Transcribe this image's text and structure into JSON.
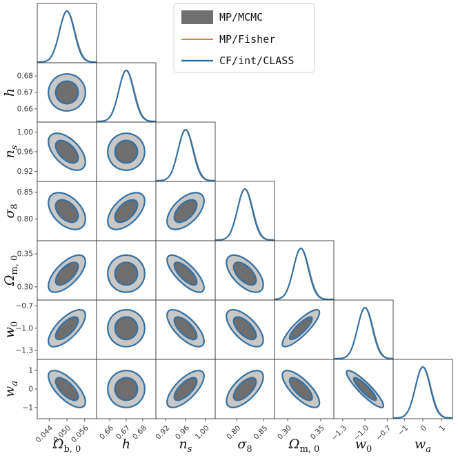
{
  "chart_data": {
    "type": "triangle",
    "parameters": [
      {
        "key": "Omega_b0",
        "min": 0.04,
        "max": 0.06,
        "mean": 0.05,
        "sigma": 0.0025,
        "ticks": [
          "0.044",
          "0.050",
          "0.056"
        ],
        "tick_values": [
          0.044,
          0.05,
          0.056
        ]
      },
      {
        "key": "h",
        "min": 0.652,
        "max": 0.688,
        "mean": 0.67,
        "sigma": 0.0045,
        "ticks": [
          "0.66",
          "0.67",
          "0.68"
        ],
        "tick_values": [
          0.66,
          0.67,
          0.68
        ]
      },
      {
        "key": "n_s",
        "min": 0.9,
        "max": 1.02,
        "mean": 0.96,
        "sigma": 0.015,
        "ticks": [
          "0.92",
          "0.96",
          "1.00"
        ],
        "tick_values": [
          0.92,
          0.96,
          1.0
        ]
      },
      {
        "key": "sigma_8",
        "min": 0.76,
        "max": 0.87,
        "mean": 0.815,
        "sigma": 0.0137,
        "ticks": [
          "0.80",
          "0.85"
        ],
        "tick_values": [
          0.8,
          0.85
        ]
      },
      {
        "key": "Omega_m0",
        "min": 0.28,
        "max": 0.37,
        "mean": 0.32,
        "sigma": 0.0113,
        "ticks": [
          "0.30",
          "0.35"
        ],
        "tick_values": [
          0.3,
          0.35
        ]
      },
      {
        "key": "w_0",
        "min": -1.42,
        "max": -0.62,
        "mean": -1.0,
        "sigma": 0.1,
        "ticks": [
          "-1.3",
          "-1.0",
          "-0.7"
        ],
        "tick_values": [
          -1.3,
          -1.0,
          -0.7
        ]
      },
      {
        "key": "w_a",
        "min": -1.6,
        "max": 1.6,
        "mean": 0.0,
        "sigma": 0.4,
        "ticks": [
          "-1",
          "0",
          "1"
        ],
        "tick_values": [
          -1,
          0,
          1
        ]
      }
    ],
    "correlations": [
      [
        1.0,
        0.0,
        -0.55,
        -0.45,
        0.65,
        0.7,
        -0.7
      ],
      [
        0.0,
        1.0,
        0.0,
        0.55,
        0.0,
        0.0,
        0.0
      ],
      [
        -0.55,
        0.0,
        1.0,
        0.55,
        -0.75,
        -0.7,
        0.7
      ],
      [
        -0.45,
        0.55,
        0.55,
        1.0,
        -0.6,
        -0.65,
        0.65
      ],
      [
        0.65,
        0.0,
        -0.75,
        -0.6,
        1.0,
        0.85,
        -0.75
      ],
      [
        0.7,
        0.0,
        -0.7,
        -0.65,
        0.85,
        1.0,
        -0.9
      ],
      [
        -0.7,
        0.0,
        0.7,
        0.65,
        -0.75,
        -0.9,
        1.0
      ]
    ],
    "legend": {
      "position": "top-right",
      "entries": [
        {
          "label": "MP/MCMC",
          "style": "filled-box",
          "color": "#707070"
        },
        {
          "label": "MP/Fisher",
          "style": "line",
          "color": "#e07b39"
        },
        {
          "label": "CF/int/CLASS",
          "style": "line",
          "color": "#2f6f9f"
        }
      ]
    },
    "contour_levels": [
      "1-sigma",
      "2-sigma"
    ],
    "colors": {
      "mcmc_inner": "#6e6e6e",
      "mcmc_outer": "#c8c8c8",
      "fisher": "#e07b39",
      "class": "#3471a3",
      "mcmc_line": "#8a8a8a"
    }
  },
  "labels": {
    "Omega_b0": "Ω<sub>b,0</sub>",
    "h": "h",
    "n_s": "n_s",
    "sigma_8": "σ_8",
    "Omega_m0": "Ω_m,0",
    "w_0": "w_0",
    "w_a": "w_a"
  }
}
